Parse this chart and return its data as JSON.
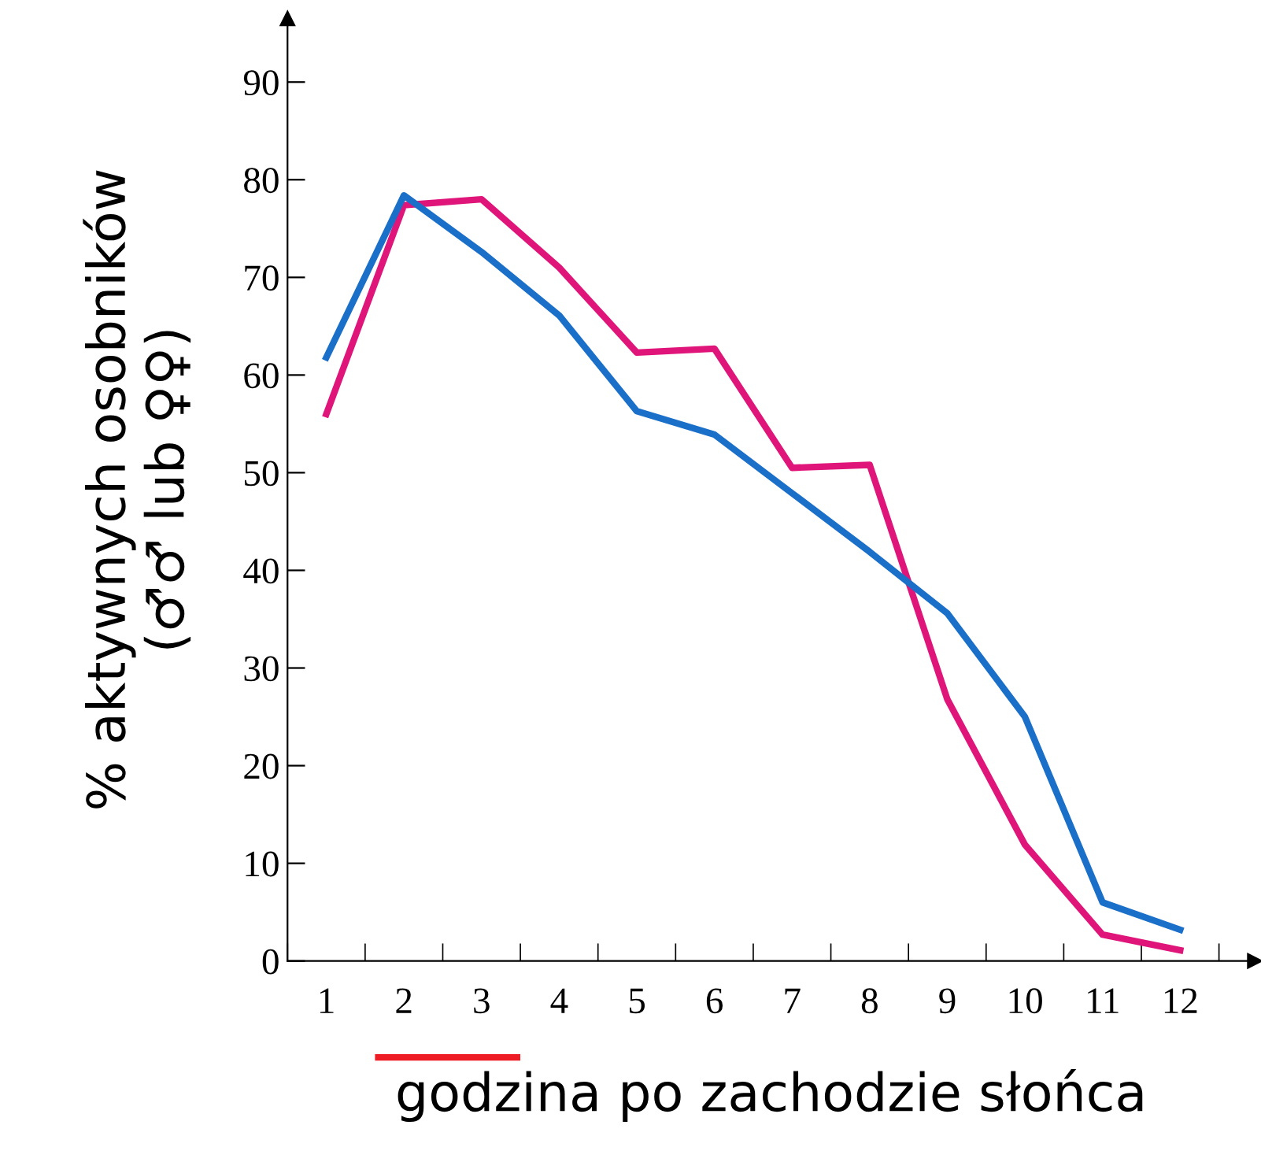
{
  "chart_data": {
    "type": "line",
    "xlabel": "godzina po zachodzie słońca",
    "ylabel": "% aktywnych osobników\n(♂♂ lub ♀♀)",
    "categories": [
      "1",
      "2",
      "3",
      "4",
      "5",
      "6",
      "7",
      "8",
      "9",
      "10",
      "11",
      "12"
    ],
    "series": [
      {
        "color": "#e0157a",
        "values": [
          56,
          77.4,
          78,
          71,
          62.3,
          62.7,
          50.5,
          50.8,
          26.8,
          11.9,
          2.7,
          1.1
        ]
      },
      {
        "color": "#1a6fc9",
        "values": [
          61.8,
          78.4,
          72.6,
          66.1,
          56.3,
          53.9,
          47.9,
          41.9,
          35.6,
          25,
          6,
          3.2
        ]
      }
    ],
    "ylim": [
      0,
      96.5
    ],
    "yticks": [
      0,
      10,
      20,
      30,
      40,
      50,
      60,
      70,
      80,
      90
    ],
    "grid": false,
    "legend": false,
    "marker": "none",
    "line_style": "solid"
  }
}
